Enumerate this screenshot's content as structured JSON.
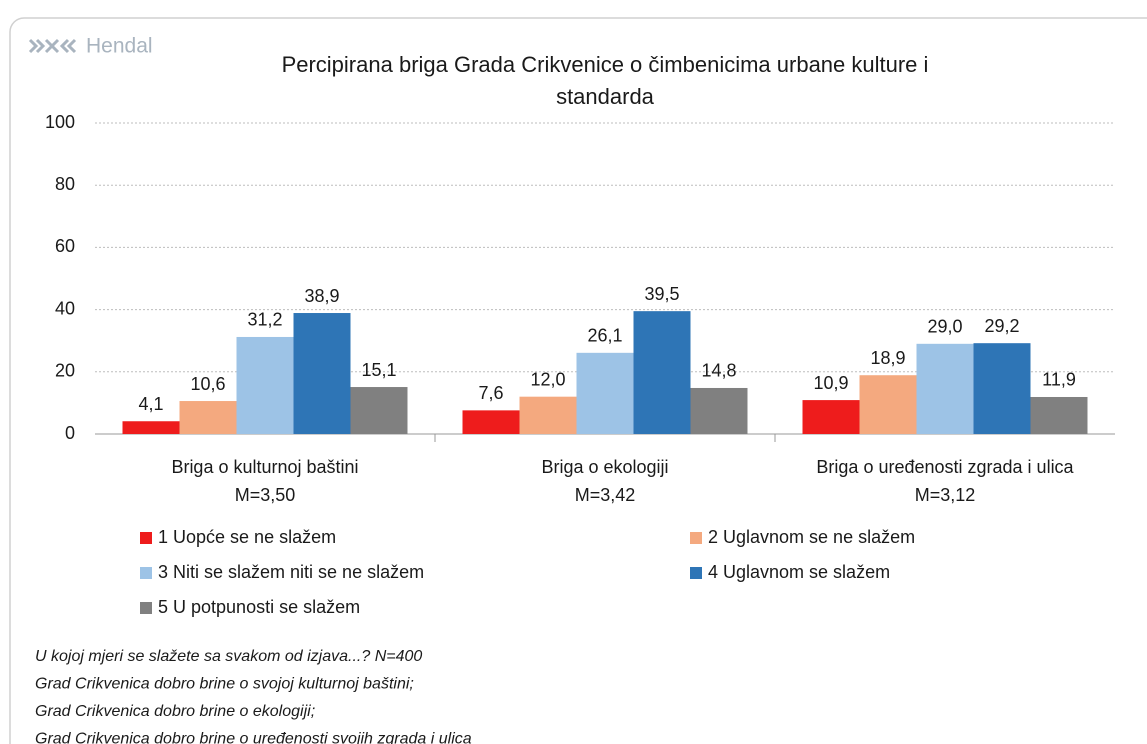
{
  "logo": "Hendal",
  "chart_data": {
    "type": "bar",
    "title": [
      "Percipirana briga Grada Crikvenice o čimbenicima urbane kulture i",
      "standarda"
    ],
    "categories": [
      "Briga o kulturnoj baštini",
      "Briga o ekologiji",
      "Briga o uređenosti zgrada i ulica"
    ],
    "category_sublabels": [
      "M=3,50",
      "M=3,42",
      "M=3,12"
    ],
    "ylim": [
      0,
      100
    ],
    "yticks": [
      0,
      20,
      40,
      60,
      80,
      100
    ],
    "grid": true,
    "series": [
      {
        "name": "1 Uopće se ne slažem",
        "color": "#ee1c1c",
        "values": [
          4.1,
          7.6,
          10.9
        ],
        "value_labels": [
          "4,1",
          "7,6",
          "10,9"
        ]
      },
      {
        "name": "2 Uglavnom se ne slažem",
        "color": "#f4a97f",
        "values": [
          10.6,
          12.0,
          18.9
        ],
        "value_labels": [
          "10,6",
          "12,0",
          "18,9"
        ]
      },
      {
        "name": "3 Niti se slažem niti se ne slažem",
        "color": "#9dc3e6",
        "values": [
          31.2,
          26.1,
          29.0
        ],
        "value_labels": [
          "31,2",
          "26,1",
          "29,0"
        ]
      },
      {
        "name": "4 Uglavnom se slažem",
        "color": "#2e75b6",
        "values": [
          38.9,
          39.5,
          29.2
        ],
        "value_labels": [
          "38,9",
          "39,5",
          "29,2"
        ]
      },
      {
        "name": "5 U potpunosti se slažem",
        "color": "#808080",
        "values": [
          15.1,
          14.8,
          11.9
        ],
        "value_labels": [
          "15,1",
          "14,8",
          "11,9"
        ]
      }
    ],
    "notes": [
      "U kojoj mjeri se slažete sa svakom od izjava...? N=400",
      "Grad Crikvenica dobro brine o svojoj kulturnoj baštini;",
      "Grad Crikvenica dobro brine o ekologiji;",
      "Grad Crikvenica dobro brine o uređenosti svojih zgrada i ulica"
    ]
  }
}
